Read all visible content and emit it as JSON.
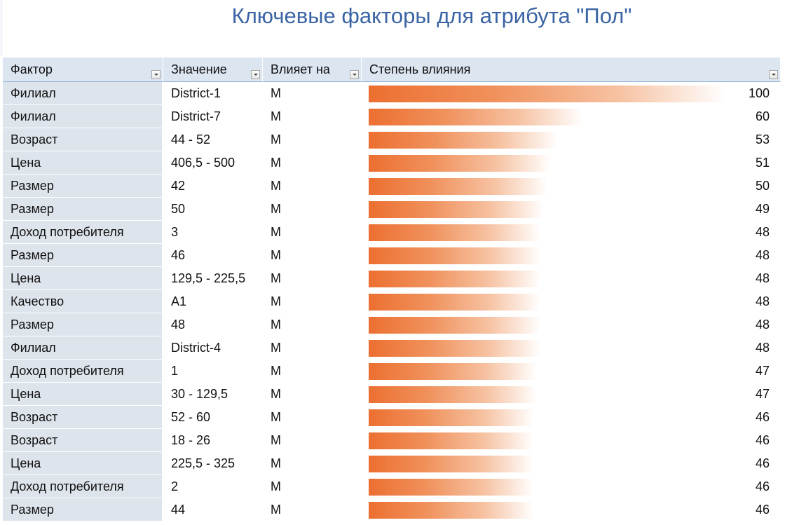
{
  "title": "Ключевые факторы для атрибута \"Пол\"",
  "columns": {
    "factor": "Фактор",
    "value": "Значение",
    "affects": "Влияет на",
    "importance": "Степень влияния"
  },
  "rows": [
    {
      "factor": "Филиал",
      "value": "District-1",
      "affects": "M",
      "score": 100
    },
    {
      "factor": "Филиал",
      "value": "District-7",
      "affects": "M",
      "score": 60
    },
    {
      "factor": "Возраст",
      "value": "44 - 52",
      "affects": "M",
      "score": 53
    },
    {
      "factor": "Цена",
      "value": "406,5 - 500",
      "affects": "M",
      "score": 51
    },
    {
      "factor": "Размер",
      "value": "42",
      "affects": "M",
      "score": 50
    },
    {
      "factor": "Размер",
      "value": "50",
      "affects": "M",
      "score": 49
    },
    {
      "factor": "Доход потребителя",
      "value": "3",
      "affects": "M",
      "score": 48
    },
    {
      "factor": "Размер",
      "value": "46",
      "affects": "M",
      "score": 48
    },
    {
      "factor": "Цена",
      "value": "129,5 - 225,5",
      "affects": "M",
      "score": 48
    },
    {
      "factor": "Качество",
      "value": "A1",
      "affects": "M",
      "score": 48
    },
    {
      "factor": "Размер",
      "value": "48",
      "affects": "M",
      "score": 48
    },
    {
      "factor": "Филиал",
      "value": "District-4",
      "affects": "M",
      "score": 48
    },
    {
      "factor": "Доход потребителя",
      "value": "1",
      "affects": "M",
      "score": 47
    },
    {
      "factor": "Цена",
      "value": "30 - 129,5",
      "affects": "M",
      "score": 47
    },
    {
      "factor": "Возраст",
      "value": "52 - 60",
      "affects": "M",
      "score": 46
    },
    {
      "factor": "Возраст",
      "value": "18 - 26",
      "affects": "M",
      "score": 46
    },
    {
      "factor": "Цена",
      "value": "225,5 - 325",
      "affects": "M",
      "score": 46
    },
    {
      "factor": "Доход потребителя",
      "value": "2",
      "affects": "M",
      "score": 46
    },
    {
      "factor": "Размер",
      "value": "44",
      "affects": "M",
      "score": 46
    }
  ],
  "colors": {
    "title": "#3a64a4",
    "header_bg": "#dce6f1",
    "factor_bg": "#dee4ec",
    "bar_start": "#ec6f30"
  }
}
